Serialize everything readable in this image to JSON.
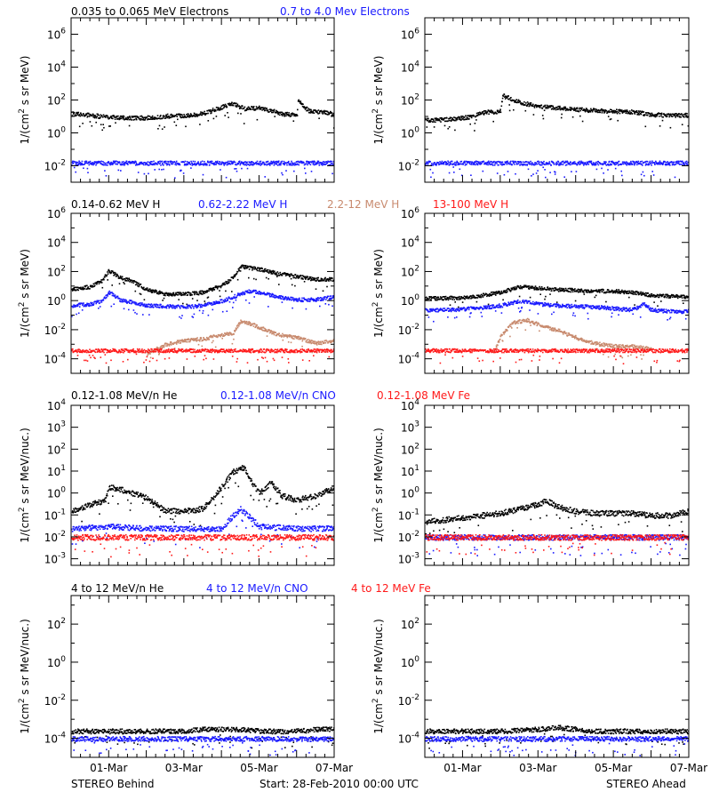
{
  "footer": {
    "left": "STEREO Behind",
    "center": "Start: 28-Feb-2010 00:00 UTC",
    "right": "STEREO Ahead"
  },
  "x_ticks": [
    "01-Mar",
    "03-Mar",
    "05-Mar",
    "07-Mar"
  ],
  "colors": {
    "black": "#000000",
    "blue": "#1a1aff",
    "brown": "#c88a6e",
    "red": "#ff1a1a"
  },
  "chart_data": [
    {
      "type": "scatter",
      "row": 0,
      "legend": [
        {
          "text": "0.035 to 0.065 MeV Electrons",
          "color": "#000000"
        },
        {
          "text": "0.7 to 4.0 Mev Electrons",
          "color": "#1a1aff"
        }
      ],
      "ylabel": "1/(cm² s sr MeV)",
      "yscale": "log",
      "ylim_log10": [
        -3,
        7
      ],
      "ytick_labels": [
        "10⁻²",
        "10⁰",
        "10²",
        "10⁴",
        "10⁶"
      ],
      "ytick_log10": [
        -2,
        0,
        2,
        4,
        6
      ],
      "xlim_days": [
        0,
        7
      ],
      "panels": [
        {
          "spacecraft": "STEREO Behind",
          "series": [
            {
              "color": "#000000",
              "x": [
                0,
                0.5,
                1,
                1.5,
                2,
                2.5,
                3,
                3.5,
                4,
                4.3,
                4.6,
                5,
                5.3,
                5.6,
                6.0,
                6.02,
                6.3,
                7
              ],
              "log10y": [
                1.2,
                1.1,
                1.0,
                0.95,
                0.95,
                1.05,
                1.1,
                1.2,
                1.6,
                1.8,
                1.5,
                1.55,
                1.4,
                1.2,
                1.1,
                2.0,
                1.4,
                1.2
              ]
            },
            {
              "color": "#1a1aff",
              "x": [
                0,
                1,
                2,
                3,
                4,
                5,
                6,
                7
              ],
              "log10y": [
                -1.8,
                -1.8,
                -1.8,
                -1.8,
                -1.8,
                -1.8,
                -1.8,
                -1.8
              ]
            }
          ]
        },
        {
          "spacecraft": "STEREO Ahead",
          "series": [
            {
              "color": "#000000",
              "x": [
                0,
                0.6,
                1.2,
                1.6,
                2.0,
                2.05,
                2.5,
                3,
                3.5,
                4,
                4.5,
                5,
                5.5,
                6,
                6.5,
                7
              ],
              "log10y": [
                0.8,
                0.85,
                1.0,
                1.3,
                1.35,
                2.3,
                1.9,
                1.65,
                1.55,
                1.45,
                1.4,
                1.35,
                1.3,
                1.15,
                1.1,
                1.1
              ]
            },
            {
              "color": "#1a1aff",
              "x": [
                0,
                1,
                2,
                3,
                4,
                5,
                6,
                7
              ],
              "log10y": [
                -1.8,
                -1.8,
                -1.8,
                -1.8,
                -1.8,
                -1.8,
                -1.8,
                -1.8
              ]
            }
          ]
        }
      ]
    },
    {
      "type": "scatter",
      "row": 1,
      "legend": [
        {
          "text": "0.14-0.62 MeV H",
          "color": "#000000"
        },
        {
          "text": "0.62-2.22 MeV H",
          "color": "#1a1aff"
        },
        {
          "text": "2.2-12 MeV H",
          "color": "#c88a6e"
        },
        {
          "text": "13-100 MeV H",
          "color": "#ff1a1a"
        }
      ],
      "ylabel": "1/(cm² s sr MeV)",
      "yscale": "log",
      "ylim_log10": [
        -5,
        6
      ],
      "ytick_labels": [
        "10⁻⁴",
        "10⁻²",
        "10⁰",
        "10²",
        "10⁴",
        "10⁶"
      ],
      "ytick_log10": [
        -4,
        -2,
        0,
        2,
        4,
        6
      ],
      "xlim_days": [
        0,
        7
      ],
      "panels": [
        {
          "spacecraft": "STEREO Behind",
          "series": [
            {
              "color": "#000000",
              "x": [
                0,
                0.5,
                0.8,
                1.0,
                1.3,
                1.6,
                2.0,
                2.5,
                3,
                3.5,
                4.0,
                4.3,
                4.5,
                4.7,
                5,
                5.5,
                6,
                6.5,
                7
              ],
              "log10y": [
                0.8,
                1.0,
                1.4,
                2.1,
                1.6,
                1.4,
                0.8,
                0.5,
                0.5,
                0.6,
                1.1,
                1.6,
                2.4,
                2.3,
                2.2,
                1.9,
                1.7,
                1.5,
                1.5
              ]
            },
            {
              "color": "#1a1aff",
              "x": [
                0,
                0.5,
                0.8,
                1.0,
                1.3,
                2,
                3,
                3.5,
                4.0,
                4.4,
                4.7,
                5,
                5.5,
                6,
                6.5,
                7
              ],
              "log10y": [
                -0.3,
                -0.2,
                0,
                0.6,
                0.1,
                -0.3,
                -0.4,
                -0.3,
                0,
                0.4,
                0.7,
                0.6,
                0.3,
                0.1,
                0.1,
                0.3
              ]
            },
            {
              "color": "#c88a6e",
              "x": [
                2.0,
                2.5,
                3,
                3.5,
                4,
                4.3,
                4.5,
                4.7,
                5,
                5.5,
                6,
                6.5,
                7
              ],
              "log10y": [
                -3.6,
                -3.0,
                -2.7,
                -2.6,
                -2.3,
                -2.2,
                -1.4,
                -1.5,
                -1.8,
                -2.3,
                -2.5,
                -2.9,
                -2.7
              ]
            },
            {
              "color": "#ff1a1a",
              "x": [
                0,
                1,
                2,
                3,
                4,
                5,
                6,
                7
              ],
              "log10y": [
                -3.4,
                -3.4,
                -3.4,
                -3.4,
                -3.4,
                -3.4,
                -3.4,
                -3.4
              ]
            }
          ]
        },
        {
          "spacecraft": "STEREO Ahead",
          "series": [
            {
              "color": "#000000",
              "x": [
                0,
                0.5,
                1.0,
                1.5,
                2.0,
                2.5,
                3,
                3.5,
                4,
                4.5,
                5,
                5.5,
                5.8,
                6,
                6.5,
                7
              ],
              "log10y": [
                0.2,
                0.2,
                0.25,
                0.4,
                0.6,
                1.0,
                0.9,
                0.8,
                0.75,
                0.7,
                0.7,
                0.6,
                0.5,
                0.4,
                0.35,
                0.3
              ]
            },
            {
              "color": "#1a1aff",
              "x": [
                0,
                0.5,
                1.0,
                1.5,
                2.0,
                2.5,
                3,
                3.5,
                4,
                4.5,
                5,
                5.5,
                5.8,
                6,
                6.5,
                7
              ],
              "log10y": [
                -0.6,
                -0.6,
                -0.55,
                -0.45,
                -0.3,
                0,
                -0.2,
                -0.3,
                -0.35,
                -0.4,
                -0.5,
                -0.6,
                -0.2,
                -0.6,
                -0.7,
                -0.7
              ]
            },
            {
              "color": "#c88a6e",
              "x": [
                1.8,
                2.0,
                2.3,
                2.7,
                3,
                3.5,
                4,
                4.5,
                5,
                5.5,
                6
              ],
              "log10y": [
                -3.6,
                -2.4,
                -1.5,
                -1.3,
                -1.6,
                -2.0,
                -2.5,
                -2.9,
                -3.1,
                -3.1,
                -3.3
              ]
            },
            {
              "color": "#ff1a1a",
              "x": [
                0,
                1,
                2,
                3,
                4,
                5,
                6,
                7
              ],
              "log10y": [
                -3.4,
                -3.4,
                -3.4,
                -3.4,
                -3.4,
                -3.4,
                -3.4,
                -3.4
              ]
            }
          ]
        }
      ]
    },
    {
      "type": "scatter",
      "row": 2,
      "legend": [
        {
          "text": "0.12-1.08 MeV/n He",
          "color": "#000000"
        },
        {
          "text": "0.12-1.08 MeV/n CNO",
          "color": "#1a1aff"
        },
        {
          "text": "0.12-1.08 MeV Fe",
          "color": "#ff1a1a"
        }
      ],
      "ylabel": "1/(cm² s sr MeV/nuc.)",
      "yscale": "log",
      "ylim_log10": [
        -3.3,
        4
      ],
      "ytick_labels": [
        "10⁻³",
        "10⁻²",
        "10⁻¹",
        "10⁰",
        "10¹",
        "10²",
        "10³",
        "10⁴"
      ],
      "ytick_log10": [
        -3,
        -2,
        -1,
        0,
        1,
        2,
        3,
        4
      ],
      "xlim_days": [
        0,
        7
      ],
      "panels": [
        {
          "spacecraft": "STEREO Behind",
          "series": [
            {
              "color": "#000000",
              "x": [
                0,
                0.5,
                0.9,
                1.0,
                1.5,
                2,
                2.5,
                3,
                3.5,
                4.0,
                4.3,
                4.6,
                4.8,
                5,
                5.3,
                5.6,
                6,
                6.5,
                7
              ],
              "log10y": [
                -0.8,
                -0.5,
                -0.3,
                0.3,
                0.1,
                -0.2,
                -0.8,
                -0.8,
                -0.7,
                0.3,
                1.0,
                1.2,
                0.5,
                0.0,
                0.5,
                -0.1,
                -0.3,
                -0.1,
                0.3
              ]
            },
            {
              "color": "#1a1aff",
              "x": [
                0,
                1,
                2,
                3,
                4,
                4.3,
                4.5,
                4.7,
                5,
                6,
                7
              ],
              "log10y": [
                -1.6,
                -1.5,
                -1.6,
                -1.6,
                -1.6,
                -1.0,
                -0.7,
                -1.0,
                -1.5,
                -1.6,
                -1.6
              ]
            },
            {
              "color": "#ff1a1a",
              "x": [
                0,
                1,
                2,
                3,
                4,
                5,
                6,
                7
              ],
              "log10y": [
                -2.0,
                -2.0,
                -2.0,
                -2.0,
                -2.0,
                -2.0,
                -2.0,
                -2.0
              ]
            }
          ]
        },
        {
          "spacecraft": "STEREO Ahead",
          "series": [
            {
              "color": "#000000",
              "x": [
                0,
                0.5,
                1,
                1.5,
                2,
                2.5,
                3,
                3.2,
                3.5,
                4,
                4.5,
                5,
                5.5,
                6,
                6.5,
                7
              ],
              "log10y": [
                -1.3,
                -1.2,
                -1.1,
                -1.0,
                -0.9,
                -0.7,
                -0.5,
                -0.3,
                -0.6,
                -0.8,
                -0.9,
                -0.9,
                -0.9,
                -1.0,
                -1.0,
                -0.8
              ]
            },
            {
              "color": "#1a1aff",
              "x": [
                0,
                1,
                2,
                3,
                4,
                5,
                6,
                7
              ],
              "log10y": [
                -2.0,
                -2.0,
                -2.0,
                -2.0,
                -2.0,
                -2.0,
                -2.0,
                -2.0
              ]
            },
            {
              "color": "#ff1a1a",
              "x": [
                0,
                1,
                2,
                3,
                4,
                5,
                6,
                7
              ],
              "log10y": [
                -2.0,
                -2.0,
                -2.0,
                -2.0,
                -2.0,
                -2.0,
                -2.0,
                -2.0
              ]
            }
          ]
        }
      ]
    },
    {
      "type": "scatter",
      "row": 3,
      "legend": [
        {
          "text": "4 to 12 MeV/n He",
          "color": "#000000"
        },
        {
          "text": "4 to 12 MeV/n CNO",
          "color": "#1a1aff"
        },
        {
          "text": "4 to 12 MeV Fe",
          "color": "#ff1a1a"
        }
      ],
      "ylabel": "1/(cm² s sr MeV/nuc.)",
      "yscale": "log",
      "ylim_log10": [
        -5,
        3.5
      ],
      "ytick_labels": [
        "10⁻⁴",
        "10⁻²",
        "10⁰",
        "10²"
      ],
      "ytick_log10": [
        -4,
        -2,
        0,
        2
      ],
      "xlim_days": [
        0,
        7
      ],
      "panels": [
        {
          "spacecraft": "STEREO Behind",
          "series": [
            {
              "color": "#000000",
              "x": [
                0,
                0.5,
                1,
                1.5,
                2,
                2.5,
                3,
                3.5,
                4,
                4.5,
                5,
                5.5,
                6,
                6.5,
                7
              ],
              "log10y": [
                -3.6,
                -3.6,
                -3.6,
                -3.6,
                -3.6,
                -3.6,
                -3.6,
                -3.5,
                -3.5,
                -3.5,
                -3.6,
                -3.6,
                -3.6,
                -3.5,
                -3.5
              ]
            },
            {
              "color": "#1a1aff",
              "x": [
                0,
                7
              ],
              "log10y": [
                -4.0,
                -4.0
              ]
            }
          ]
        },
        {
          "spacecraft": "STEREO Ahead",
          "series": [
            {
              "color": "#000000",
              "x": [
                0,
                0.5,
                1,
                1.5,
                2,
                2.5,
                3,
                3.5,
                4,
                4.5,
                5,
                5.5,
                6,
                6.5,
                7
              ],
              "log10y": [
                -3.6,
                -3.6,
                -3.6,
                -3.6,
                -3.6,
                -3.55,
                -3.5,
                -3.4,
                -3.5,
                -3.6,
                -3.6,
                -3.6,
                -3.6,
                -3.6,
                -3.6
              ]
            },
            {
              "color": "#1a1aff",
              "x": [
                0,
                7
              ],
              "log10y": [
                -4.0,
                -4.0
              ]
            }
          ]
        }
      ]
    }
  ]
}
